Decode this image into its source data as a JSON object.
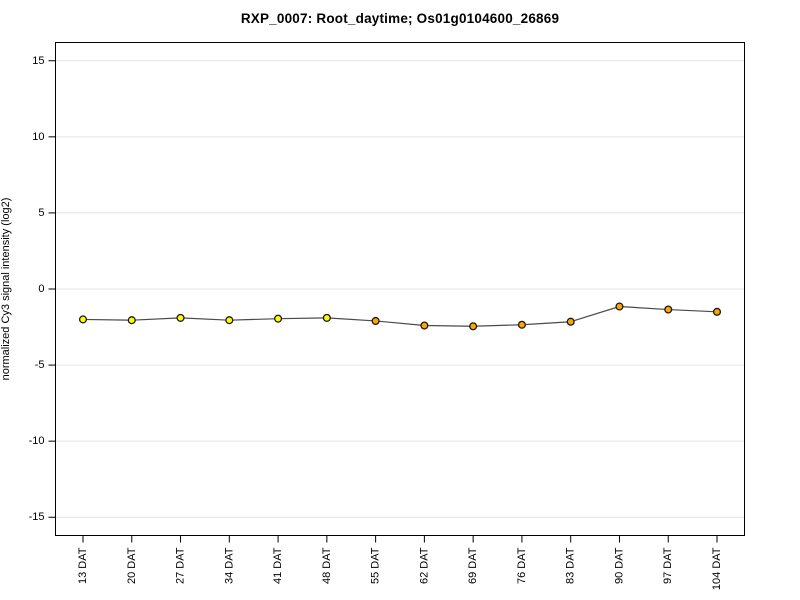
{
  "chart_data": {
    "type": "line",
    "title": "RXP_0007: Root_daytime; Os01g0104600_26869",
    "ylabel": "normalized Cy3 signal intensity (log2)",
    "xlabel": "",
    "categories": [
      "13 DAT",
      "20 DAT",
      "27 DAT",
      "34 DAT",
      "41 DAT",
      "48 DAT",
      "55 DAT",
      "62 DAT",
      "69 DAT",
      "76 DAT",
      "83 DAT",
      "90 DAT",
      "97 DAT",
      "104 DAT"
    ],
    "values": [
      -2.0,
      -2.05,
      -1.9,
      -2.05,
      -1.95,
      -1.9,
      -2.1,
      -2.4,
      -2.45,
      -2.35,
      -2.15,
      -1.15,
      -1.35,
      -1.5
    ],
    "point_colors": [
      "#ffff00",
      "#ffff00",
      "#ffff00",
      "#ffff00",
      "#ffff00",
      "#ffff00",
      "#ffa500",
      "#ffa500",
      "#ffa500",
      "#ffa500",
      "#ffa500",
      "#ffa500",
      "#ffa500",
      "#ffa500"
    ],
    "yticks": [
      15,
      10,
      5,
      0,
      -5,
      -10,
      -15
    ],
    "ylim": [
      -16.2,
      16.2
    ],
    "grid": true,
    "grid_color": "#e4e4e4",
    "line_color": "#4a4a4a",
    "point_stroke": "#1a1a1a",
    "axis_color": "#000000",
    "background": "#ffffff",
    "legend": "none"
  }
}
